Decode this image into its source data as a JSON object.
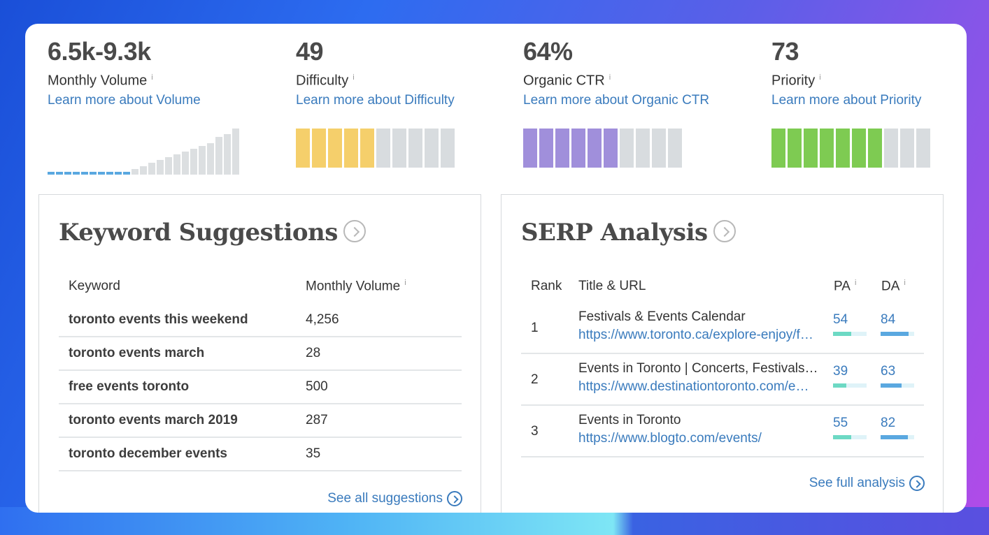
{
  "metrics": [
    {
      "value": "6.5k-9.3k",
      "label": "Monthly Volume",
      "info": "i",
      "link": "Learn more about Volume"
    },
    {
      "value": "49",
      "label": "Difficulty",
      "info": "i",
      "link": "Learn more about Difficulty",
      "filled_segments": 5,
      "total_segments": 10,
      "color": "#f5cf6b"
    },
    {
      "value": "64%",
      "label": "Organic CTR",
      "info": "i",
      "link": "Learn more about Organic CTR",
      "filled_segments": 6,
      "total_segments": 10,
      "color": "#a08fdb"
    },
    {
      "value": "73",
      "label": "Priority",
      "info": "i",
      "link": "Learn more about Priority",
      "filled_segments": 7,
      "total_segments": 10,
      "color": "#7ecb52"
    }
  ],
  "volume_chart": {
    "bar_levels": [
      1,
      1,
      1,
      1,
      1,
      1,
      1,
      1,
      1,
      1,
      2,
      3,
      4,
      5,
      6,
      7,
      8,
      9,
      10,
      11,
      13,
      14,
      16
    ],
    "highlighted_count": 10,
    "accent": "#5aa8e0"
  },
  "keyword_suggestions": {
    "title": "Keyword Suggestions",
    "columns": {
      "keyword": "Keyword",
      "volume": "Monthly Volume",
      "info": "i"
    },
    "rows": [
      {
        "keyword": "toronto events this weekend",
        "volume": "4,256"
      },
      {
        "keyword": "toronto events march",
        "volume": "28"
      },
      {
        "keyword": "free events toronto",
        "volume": "500"
      },
      {
        "keyword": "toronto events march 2019",
        "volume": "287"
      },
      {
        "keyword": "toronto december events",
        "volume": "35"
      }
    ],
    "footer_link": "See all suggestions"
  },
  "serp_analysis": {
    "title": "SERP Analysis",
    "columns": {
      "rank": "Rank",
      "title_url": "Title & URL",
      "pa": "PA",
      "da": "DA",
      "info": "i"
    },
    "rows": [
      {
        "rank": "1",
        "title": "Festivals & Events Calendar",
        "url": "https://www.toronto.ca/explore-enjoy/festivals-events/",
        "pa": "54",
        "da": "84"
      },
      {
        "rank": "2",
        "title": "Events in Toronto | Concerts, Festivals & More",
        "url": "https://www.destinationtoronto.com/events/",
        "pa": "39",
        "da": "63"
      },
      {
        "rank": "3",
        "title": "Events in Toronto",
        "url": "https://www.blogto.com/events/",
        "pa": "55",
        "da": "82"
      }
    ],
    "footer_link": "See full analysis",
    "pa_color": "#6dd9c4",
    "da_color": "#5aa8e0"
  }
}
